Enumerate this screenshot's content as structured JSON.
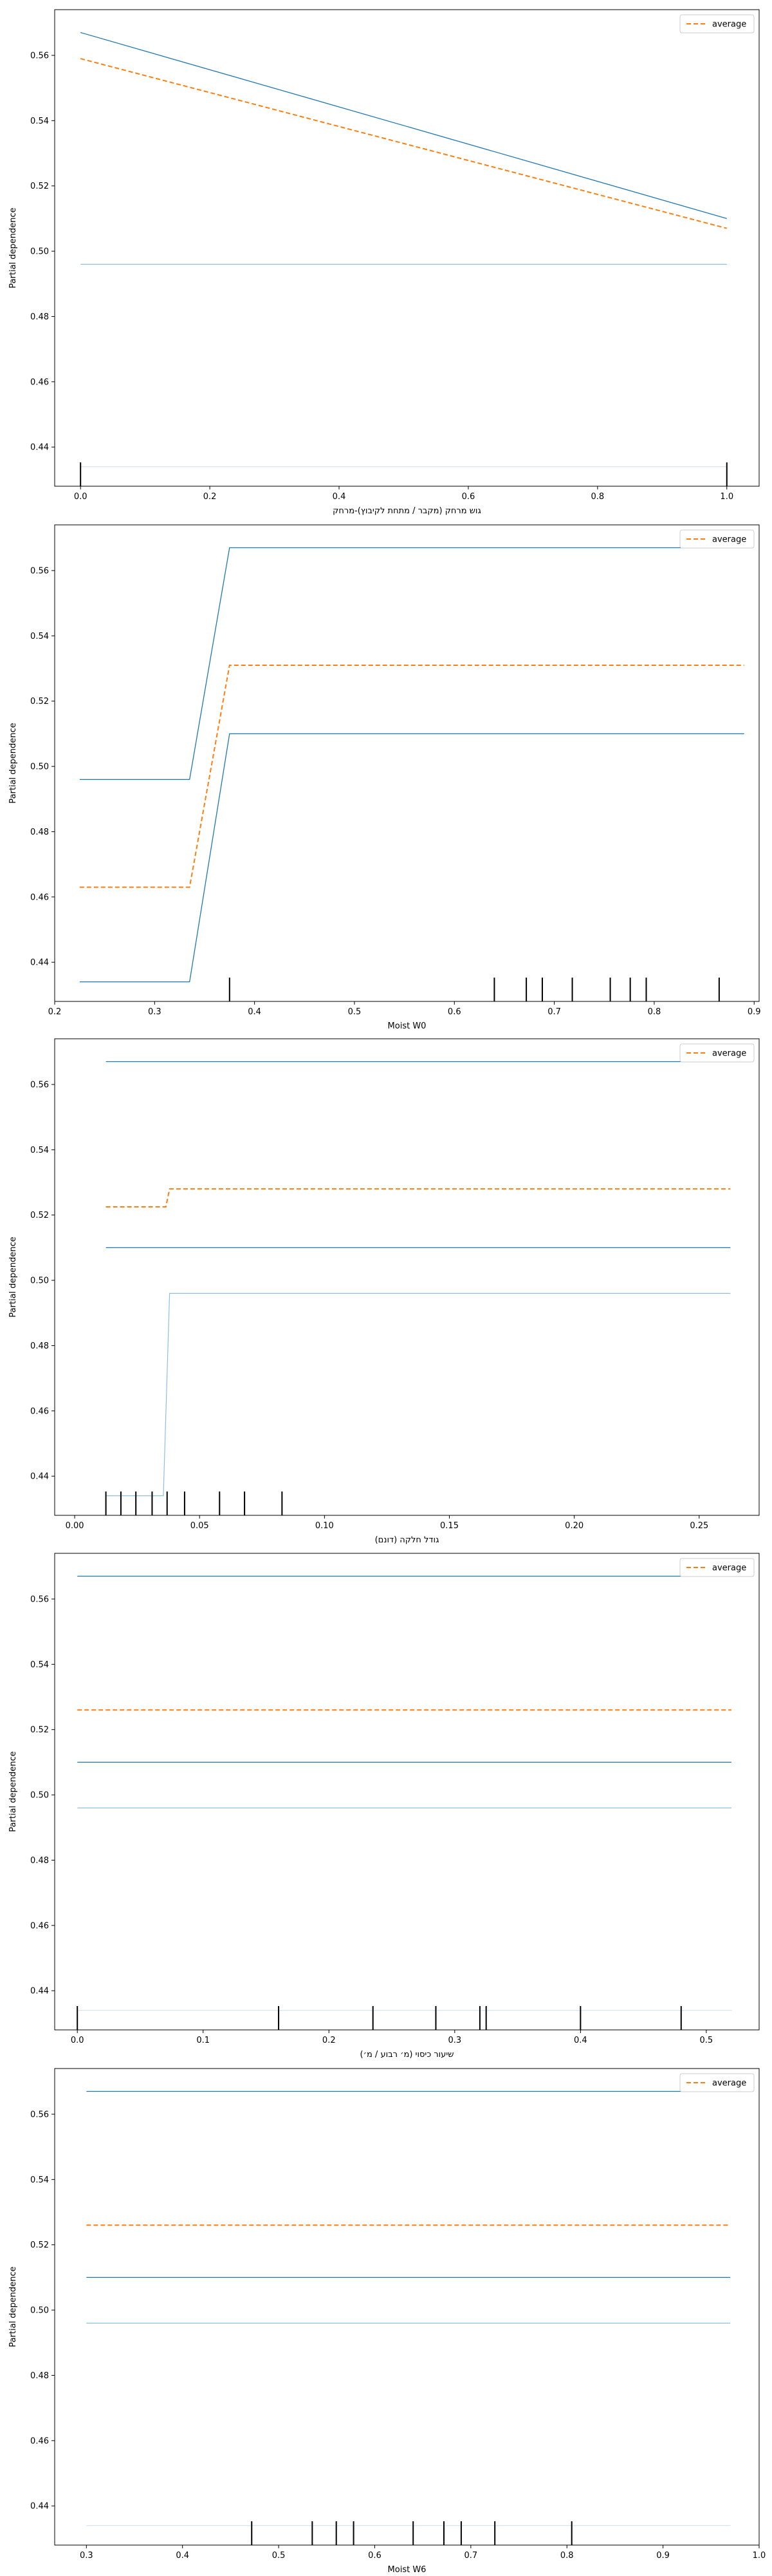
{
  "chart_data": [
    {
      "type": "line",
      "xlabel": "גוש מרחק (מקבר / מתחת לקיבוץ)-מרחק",
      "ylabel": "Partial dependence",
      "xlim": [
        -0.04,
        1.05
      ],
      "ylim": [
        0.428,
        0.574
      ],
      "xticks": [
        "0.0",
        "0.2",
        "0.4",
        "0.6",
        "0.8",
        "1.0"
      ],
      "yticks": [
        "0.44",
        "0.46",
        "0.48",
        "0.50",
        "0.52",
        "0.54",
        "0.56"
      ],
      "legend": "top-right",
      "legend_label": "average",
      "series": [
        {
          "style": "ice-dark",
          "x": [
            0,
            1
          ],
          "y": [
            0.567,
            0.51
          ]
        },
        {
          "style": "ice-light",
          "x": [
            0,
            1
          ],
          "y": [
            0.496,
            0.496
          ]
        },
        {
          "style": "ice-faint",
          "x": [
            0,
            1
          ],
          "y": [
            0.434,
            0.434
          ]
        },
        {
          "style": "average",
          "x": [
            0,
            1
          ],
          "y": [
            0.559,
            0.507
          ]
        }
      ],
      "rug": [
        0.0,
        1.0
      ]
    },
    {
      "type": "line",
      "xlabel": "Moist W0",
      "ylabel": "Partial dependence",
      "xlim": [
        0.2,
        0.905
      ],
      "ylim": [
        0.428,
        0.574
      ],
      "xticks": [
        "0.2",
        "0.3",
        "0.4",
        "0.5",
        "0.6",
        "0.7",
        "0.8",
        "0.9"
      ],
      "yticks": [
        "0.44",
        "0.46",
        "0.48",
        "0.50",
        "0.52",
        "0.54",
        "0.56"
      ],
      "legend": "top-right",
      "legend_label": "average",
      "series": [
        {
          "style": "ice-dark",
          "x": [
            0.225,
            0.335,
            0.375,
            0.89
          ],
          "y": [
            0.496,
            0.496,
            0.567,
            0.567
          ]
        },
        {
          "style": "ice-dark",
          "x": [
            0.225,
            0.335,
            0.375,
            0.89
          ],
          "y": [
            0.434,
            0.434,
            0.51,
            0.51
          ]
        },
        {
          "style": "average",
          "x": [
            0.225,
            0.335,
            0.375,
            0.89
          ],
          "y": [
            0.463,
            0.463,
            0.531,
            0.531
          ]
        }
      ],
      "rug": [
        0.375,
        0.64,
        0.672,
        0.688,
        0.718,
        0.756,
        0.776,
        0.792,
        0.865
      ]
    },
    {
      "type": "line",
      "xlabel": "גודל חלקה (דונם)",
      "ylabel": "Partial dependence",
      "xlim": [
        -0.008,
        0.274
      ],
      "ylim": [
        0.428,
        0.574
      ],
      "xticks": [
        "0.00",
        "0.05",
        "0.10",
        "0.15",
        "0.20",
        "0.25"
      ],
      "yticks": [
        "0.44",
        "0.46",
        "0.48",
        "0.50",
        "0.52",
        "0.54",
        "0.56"
      ],
      "legend": "top-right",
      "legend_label": "average",
      "series": [
        {
          "style": "ice-dark",
          "x": [
            0.0125,
            0.2625
          ],
          "y": [
            0.567,
            0.567
          ]
        },
        {
          "style": "ice-dark",
          "x": [
            0.0125,
            0.2625
          ],
          "y": [
            0.51,
            0.51
          ]
        },
        {
          "style": "ice-light",
          "x": [
            0.0125,
            0.0355,
            0.038,
            0.2625
          ],
          "y": [
            0.434,
            0.434,
            0.496,
            0.496
          ]
        },
        {
          "style": "average",
          "x": [
            0.0125,
            0.0365,
            0.038,
            0.2625
          ],
          "y": [
            0.5225,
            0.5225,
            0.528,
            0.528
          ]
        }
      ],
      "rug": [
        0.0125,
        0.0185,
        0.0245,
        0.031,
        0.037,
        0.044,
        0.058,
        0.068,
        0.083
      ]
    },
    {
      "type": "line",
      "xlabel": "שיעור כיסוי (מ׳ רבוע / מ׳)",
      "ylabel": "Partial dependence",
      "xlim": [
        -0.018,
        0.542
      ],
      "ylim": [
        0.428,
        0.574
      ],
      "xticks": [
        "0.0",
        "0.1",
        "0.2",
        "0.3",
        "0.4",
        "0.5"
      ],
      "yticks": [
        "0.44",
        "0.46",
        "0.48",
        "0.50",
        "0.52",
        "0.54",
        "0.56"
      ],
      "legend": "top-right",
      "legend_label": "average",
      "series": [
        {
          "style": "ice-dark",
          "x": [
            0,
            0.52
          ],
          "y": [
            0.567,
            0.567
          ]
        },
        {
          "style": "ice-dark",
          "x": [
            0,
            0.52
          ],
          "y": [
            0.51,
            0.51
          ]
        },
        {
          "style": "ice-light",
          "x": [
            0,
            0.52
          ],
          "y": [
            0.496,
            0.496
          ]
        },
        {
          "style": "ice-faint",
          "x": [
            0,
            0.52
          ],
          "y": [
            0.434,
            0.434
          ]
        },
        {
          "style": "average",
          "x": [
            0,
            0.52
          ],
          "y": [
            0.526,
            0.526
          ]
        }
      ],
      "rug": [
        0.0,
        0.16,
        0.235,
        0.285,
        0.32,
        0.325,
        0.4,
        0.48
      ]
    },
    {
      "type": "line",
      "xlabel": "Moist W6",
      "ylabel": "Partial dependence",
      "xlim": [
        0.267,
        1.0
      ],
      "ylim": [
        0.428,
        0.574
      ],
      "xticks": [
        "0.3",
        "0.4",
        "0.5",
        "0.6",
        "0.7",
        "0.8",
        "0.9",
        "1.0"
      ],
      "yticks": [
        "0.44",
        "0.46",
        "0.48",
        "0.50",
        "0.52",
        "0.54",
        "0.56"
      ],
      "legend": "top-right",
      "legend_label": "average",
      "series": [
        {
          "style": "ice-dark",
          "x": [
            0.3,
            0.97
          ],
          "y": [
            0.567,
            0.567
          ]
        },
        {
          "style": "ice-dark",
          "x": [
            0.3,
            0.97
          ],
          "y": [
            0.51,
            0.51
          ]
        },
        {
          "style": "ice-light",
          "x": [
            0.3,
            0.97
          ],
          "y": [
            0.496,
            0.496
          ]
        },
        {
          "style": "ice-faint",
          "x": [
            0.3,
            0.97
          ],
          "y": [
            0.434,
            0.434
          ]
        },
        {
          "style": "average",
          "x": [
            0.3,
            0.97
          ],
          "y": [
            0.526,
            0.526
          ]
        }
      ],
      "rug": [
        0.472,
        0.535,
        0.56,
        0.578,
        0.64,
        0.672,
        0.69,
        0.725,
        0.805
      ]
    }
  ],
  "colors": {
    "ice_dark": "#1f77b4",
    "ice_light": "#8fbfe0",
    "ice_faint": "#d2e6f4",
    "average": "#ff7f0e",
    "rug": "#000000",
    "axes": "#000000"
  }
}
